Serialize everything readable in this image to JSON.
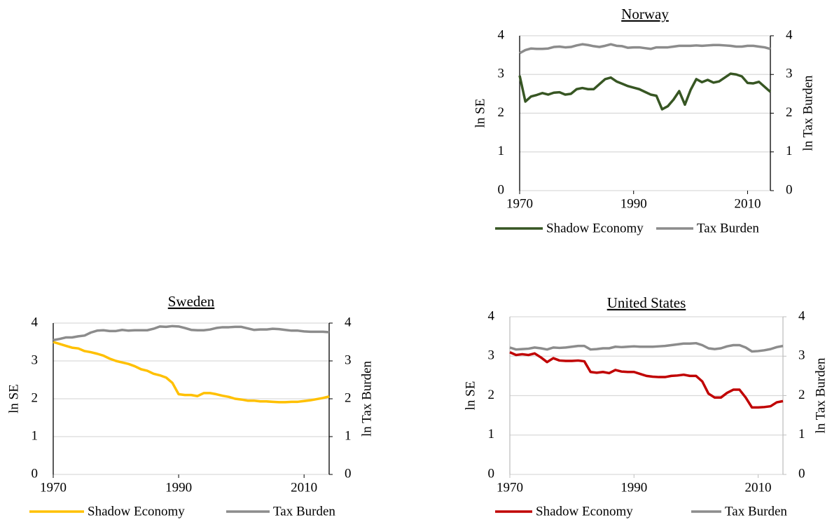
{
  "chart_data": [
    {
      "type": "line",
      "title": "Norway",
      "x": [
        1970,
        1971,
        1972,
        1973,
        1974,
        1975,
        1976,
        1977,
        1978,
        1979,
        1980,
        1981,
        1982,
        1983,
        1984,
        1985,
        1986,
        1987,
        1988,
        1989,
        1990,
        1991,
        1992,
        1993,
        1994,
        1995,
        1996,
        1997,
        1998,
        1999,
        2000,
        2001,
        2002,
        2003,
        2004,
        2005,
        2006,
        2007,
        2008,
        2009,
        2010,
        2011,
        2012,
        2013,
        2014
      ],
      "xlim": [
        1970,
        2014
      ],
      "xticks": [
        1970,
        1990,
        2010
      ],
      "ylabel": "ln SE",
      "y2label": "ln Tax Burden",
      "ylim": [
        0,
        4
      ],
      "yticks": [
        0,
        1,
        2,
        3,
        4
      ],
      "y2lim": [
        0,
        4
      ],
      "y2ticks": [
        0,
        1,
        2,
        3,
        4
      ],
      "grid": true,
      "series": [
        {
          "name": "Shadow Economy",
          "color": "#375623",
          "values": [
            2.97,
            2.3,
            2.43,
            2.47,
            2.52,
            2.48,
            2.53,
            2.54,
            2.48,
            2.5,
            2.62,
            2.65,
            2.62,
            2.62,
            2.75,
            2.88,
            2.92,
            2.82,
            2.76,
            2.7,
            2.66,
            2.62,
            2.55,
            2.48,
            2.45,
            2.1,
            2.18,
            2.35,
            2.57,
            2.22,
            2.6,
            2.88,
            2.8,
            2.86,
            2.79,
            2.82,
            2.92,
            3.02,
            3.0,
            2.95,
            2.78,
            2.77,
            2.81,
            2.68,
            2.55
          ]
        },
        {
          "name": "Tax Burden",
          "color": "#8c8c8c",
          "axis": "y2",
          "values": [
            3.55,
            3.63,
            3.67,
            3.66,
            3.66,
            3.67,
            3.71,
            3.72,
            3.7,
            3.71,
            3.75,
            3.78,
            3.76,
            3.73,
            3.71,
            3.74,
            3.78,
            3.74,
            3.73,
            3.69,
            3.7,
            3.7,
            3.68,
            3.66,
            3.7,
            3.7,
            3.7,
            3.72,
            3.74,
            3.74,
            3.74,
            3.75,
            3.74,
            3.75,
            3.76,
            3.76,
            3.75,
            3.74,
            3.72,
            3.72,
            3.74,
            3.74,
            3.72,
            3.7,
            3.66
          ]
        }
      ]
    },
    {
      "type": "line",
      "title": "Sweden",
      "x": [
        1970,
        1971,
        1972,
        1973,
        1974,
        1975,
        1976,
        1977,
        1978,
        1979,
        1980,
        1981,
        1982,
        1983,
        1984,
        1985,
        1986,
        1987,
        1988,
        1989,
        1990,
        1991,
        1992,
        1993,
        1994,
        1995,
        1996,
        1997,
        1998,
        1999,
        2000,
        2001,
        2002,
        2003,
        2004,
        2005,
        2006,
        2007,
        2008,
        2009,
        2010,
        2011,
        2012,
        2013,
        2014
      ],
      "xlim": [
        1970,
        2014
      ],
      "xticks": [
        1970,
        1990,
        2010
      ],
      "ylabel": "ln SE",
      "y2label": "ln Tax Burden",
      "ylim": [
        0,
        4
      ],
      "yticks": [
        0,
        1,
        2,
        3,
        4
      ],
      "y2lim": [
        0,
        4
      ],
      "y2ticks": [
        0,
        1,
        2,
        3,
        4
      ],
      "grid": true,
      "series": [
        {
          "name": "Shadow Economy",
          "color": "#ffc000",
          "values": [
            3.5,
            3.45,
            3.4,
            3.35,
            3.33,
            3.26,
            3.23,
            3.19,
            3.14,
            3.06,
            3.0,
            2.96,
            2.92,
            2.86,
            2.78,
            2.74,
            2.66,
            2.62,
            2.56,
            2.42,
            2.12,
            2.1,
            2.1,
            2.07,
            2.15,
            2.15,
            2.12,
            2.08,
            2.05,
            2.0,
            1.98,
            1.95,
            1.95,
            1.93,
            1.93,
            1.92,
            1.91,
            1.91,
            1.92,
            1.92,
            1.94,
            1.96,
            1.99,
            2.02,
            2.06
          ]
        },
        {
          "name": "Tax Burden",
          "color": "#8c8c8c",
          "axis": "y2",
          "values": [
            3.55,
            3.58,
            3.62,
            3.62,
            3.65,
            3.67,
            3.75,
            3.8,
            3.81,
            3.79,
            3.79,
            3.82,
            3.8,
            3.81,
            3.81,
            3.81,
            3.85,
            3.91,
            3.9,
            3.92,
            3.91,
            3.87,
            3.82,
            3.81,
            3.81,
            3.83,
            3.87,
            3.89,
            3.89,
            3.9,
            3.9,
            3.86,
            3.82,
            3.83,
            3.83,
            3.85,
            3.84,
            3.82,
            3.8,
            3.8,
            3.78,
            3.77,
            3.77,
            3.77,
            3.76
          ]
        }
      ]
    },
    {
      "type": "line",
      "title": "United States",
      "x": [
        1970,
        1971,
        1972,
        1973,
        1974,
        1975,
        1976,
        1977,
        1978,
        1979,
        1980,
        1981,
        1982,
        1983,
        1984,
        1985,
        1986,
        1987,
        1988,
        1989,
        1990,
        1991,
        1992,
        1993,
        1994,
        1995,
        1996,
        1997,
        1998,
        1999,
        2000,
        2001,
        2002,
        2003,
        2004,
        2005,
        2006,
        2007,
        2008,
        2009,
        2010,
        2011,
        2012,
        2013,
        2014
      ],
      "xlim": [
        1970,
        2014
      ],
      "xticks": [
        1970,
        1990,
        2010
      ],
      "ylabel": "ln SE",
      "y2label": "ln Tax Burden",
      "ylim": [
        0,
        4
      ],
      "yticks": [
        0,
        1,
        2,
        3,
        4
      ],
      "y2lim": [
        0,
        4
      ],
      "y2ticks": [
        0,
        1,
        2,
        3,
        4
      ],
      "grid": true,
      "series": [
        {
          "name": "Shadow Economy",
          "color": "#c00000",
          "values": [
            3.1,
            3.03,
            3.05,
            3.03,
            3.07,
            2.97,
            2.85,
            2.95,
            2.89,
            2.88,
            2.88,
            2.89,
            2.87,
            2.6,
            2.58,
            2.6,
            2.57,
            2.65,
            2.61,
            2.6,
            2.6,
            2.55,
            2.5,
            2.48,
            2.47,
            2.47,
            2.5,
            2.51,
            2.53,
            2.5,
            2.5,
            2.36,
            2.05,
            1.95,
            1.95,
            2.07,
            2.15,
            2.15,
            1.95,
            1.7,
            1.7,
            1.71,
            1.73,
            1.83,
            1.86
          ]
        },
        {
          "name": "Tax Burden",
          "color": "#8c8c8c",
          "axis": "y2",
          "values": [
            3.22,
            3.17,
            3.18,
            3.19,
            3.22,
            3.2,
            3.17,
            3.22,
            3.21,
            3.22,
            3.24,
            3.26,
            3.26,
            3.17,
            3.18,
            3.2,
            3.2,
            3.24,
            3.23,
            3.24,
            3.25,
            3.24,
            3.24,
            3.24,
            3.25,
            3.26,
            3.28,
            3.3,
            3.32,
            3.32,
            3.33,
            3.28,
            3.2,
            3.18,
            3.2,
            3.25,
            3.28,
            3.28,
            3.22,
            3.12,
            3.13,
            3.15,
            3.18,
            3.23,
            3.26
          ]
        }
      ]
    }
  ]
}
